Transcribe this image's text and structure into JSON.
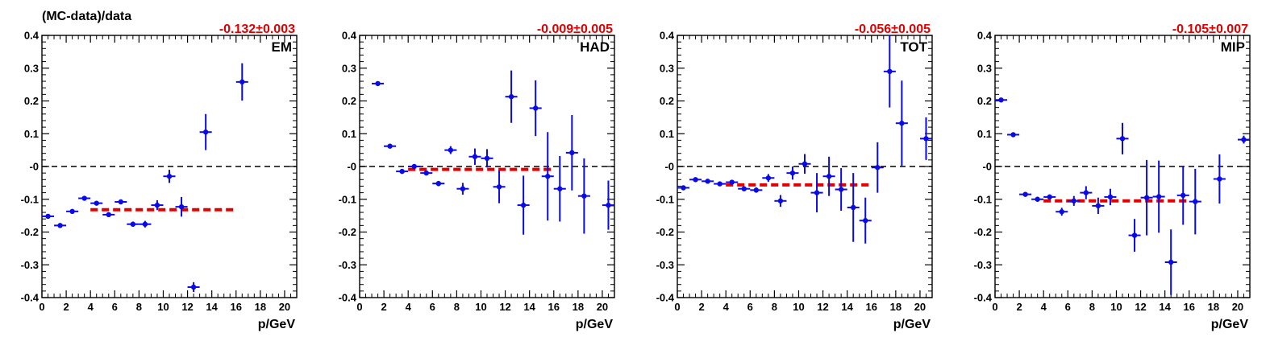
{
  "figure": {
    "ylabel": "(MC-data)/data"
  },
  "colors": {
    "points": "#0a0ae6",
    "fit": "#e00000",
    "zero_line": "#000000",
    "frame": "#000000"
  },
  "chart_data": [
    {
      "type": "scatter",
      "label": "EM",
      "fit_text": "-0.132±0.003",
      "fit_value": -0.132,
      "fit_range": [
        4,
        16
      ],
      "xlabel": "p/GeV",
      "ylabel": "(MC-data)/data",
      "xlim": [
        0,
        21
      ],
      "ylim": [
        -0.4,
        0.4
      ],
      "x_ticks": [
        "0",
        "2",
        "4",
        "6",
        "8",
        "10",
        "12",
        "14",
        "16",
        "18",
        "20"
      ],
      "y_ticks": [
        "-0.4",
        "-0.3",
        "-0.2",
        "-0.1",
        "-0",
        "0.1",
        "0.2",
        "0.3",
        "0.4"
      ],
      "points": [
        {
          "x": 0.5,
          "y": -0.152,
          "err": 0.005
        },
        {
          "x": 1.5,
          "y": -0.18,
          "err": 0.005
        },
        {
          "x": 2.5,
          "y": -0.137,
          "err": 0.005
        },
        {
          "x": 3.5,
          "y": -0.097,
          "err": 0.005
        },
        {
          "x": 4.5,
          "y": -0.112,
          "err": 0.005
        },
        {
          "x": 5.5,
          "y": -0.147,
          "err": 0.006
        },
        {
          "x": 6.5,
          "y": -0.108,
          "err": 0.006
        },
        {
          "x": 7.5,
          "y": -0.176,
          "err": 0.008
        },
        {
          "x": 8.5,
          "y": -0.176,
          "err": 0.01
        },
        {
          "x": 9.5,
          "y": -0.118,
          "err": 0.015
        },
        {
          "x": 10.5,
          "y": -0.03,
          "err": 0.02
        },
        {
          "x": 11.5,
          "y": -0.123,
          "err": 0.03
        },
        {
          "x": 12.5,
          "y": -0.368,
          "err": 0.015
        },
        {
          "x": 13.5,
          "y": 0.105,
          "err": 0.055
        },
        {
          "x": 16.5,
          "y": 0.258,
          "err": 0.057
        }
      ]
    },
    {
      "type": "scatter",
      "label": "HAD",
      "fit_text": "-0.009±0.005",
      "fit_value": -0.009,
      "fit_range": [
        4,
        16
      ],
      "xlabel": "p/GeV",
      "ylabel": "",
      "xlim": [
        0,
        21
      ],
      "ylim": [
        -0.4,
        0.4
      ],
      "x_ticks": [
        "0",
        "2",
        "4",
        "6",
        "8",
        "10",
        "12",
        "14",
        "16",
        "18",
        "20"
      ],
      "y_ticks": [
        "-0.4",
        "-0.3",
        "-0.2",
        "-0.1",
        "-0",
        "0.1",
        "0.2",
        "0.3",
        "0.4"
      ],
      "points": [
        {
          "x": 1.5,
          "y": 0.253,
          "err": 0.005
        },
        {
          "x": 2.5,
          "y": 0.062,
          "err": 0.005
        },
        {
          "x": 3.5,
          "y": -0.015,
          "err": 0.005
        },
        {
          "x": 4.5,
          "y": 0.0,
          "err": 0.005
        },
        {
          "x": 5.5,
          "y": -0.02,
          "err": 0.006
        },
        {
          "x": 6.5,
          "y": -0.052,
          "err": 0.008
        },
        {
          "x": 7.5,
          "y": 0.05,
          "err": 0.012
        },
        {
          "x": 8.5,
          "y": -0.068,
          "err": 0.018
        },
        {
          "x": 9.5,
          "y": 0.03,
          "err": 0.025
        },
        {
          "x": 10.5,
          "y": 0.025,
          "err": 0.028
        },
        {
          "x": 11.5,
          "y": -0.062,
          "err": 0.05
        },
        {
          "x": 12.5,
          "y": 0.213,
          "err": 0.08
        },
        {
          "x": 13.5,
          "y": -0.118,
          "err": 0.09
        },
        {
          "x": 14.5,
          "y": 0.178,
          "err": 0.085
        },
        {
          "x": 15.5,
          "y": -0.03,
          "err": 0.135
        },
        {
          "x": 16.5,
          "y": -0.068,
          "err": 0.1
        },
        {
          "x": 17.5,
          "y": 0.042,
          "err": 0.115
        },
        {
          "x": 18.5,
          "y": -0.09,
          "err": 0.115
        },
        {
          "x": 20.5,
          "y": -0.118,
          "err": 0.075
        }
      ]
    },
    {
      "type": "scatter",
      "label": "TOT",
      "fit_text": "-0.056±0.005",
      "fit_value": -0.056,
      "fit_range": [
        4,
        16
      ],
      "xlabel": "p/GeV",
      "ylabel": "",
      "xlim": [
        0,
        21
      ],
      "ylim": [
        -0.4,
        0.4
      ],
      "x_ticks": [
        "0",
        "2",
        "4",
        "6",
        "8",
        "10",
        "12",
        "14",
        "16",
        "18",
        "20"
      ],
      "y_ticks": [
        "-0.4",
        "-0.3",
        "-0.2",
        "-0.1",
        "-0",
        "0.1",
        "0.2",
        "0.3",
        "0.4"
      ],
      "points": [
        {
          "x": 0.5,
          "y": -0.065,
          "err": 0.005
        },
        {
          "x": 1.5,
          "y": -0.04,
          "err": 0.005
        },
        {
          "x": 2.5,
          "y": -0.045,
          "err": 0.005
        },
        {
          "x": 3.5,
          "y": -0.053,
          "err": 0.005
        },
        {
          "x": 4.5,
          "y": -0.048,
          "err": 0.005
        },
        {
          "x": 5.5,
          "y": -0.068,
          "err": 0.006
        },
        {
          "x": 6.5,
          "y": -0.072,
          "err": 0.008
        },
        {
          "x": 7.5,
          "y": -0.035,
          "err": 0.012
        },
        {
          "x": 8.5,
          "y": -0.105,
          "err": 0.018
        },
        {
          "x": 9.5,
          "y": -0.02,
          "err": 0.02
        },
        {
          "x": 10.5,
          "y": 0.008,
          "err": 0.03
        },
        {
          "x": 11.5,
          "y": -0.08,
          "err": 0.06
        },
        {
          "x": 12.5,
          "y": -0.03,
          "err": 0.06
        },
        {
          "x": 13.5,
          "y": -0.07,
          "err": 0.065
        },
        {
          "x": 14.5,
          "y": -0.125,
          "err": 0.105
        },
        {
          "x": 15.5,
          "y": -0.165,
          "err": 0.07
        },
        {
          "x": 16.5,
          "y": -0.003,
          "err": 0.077
        },
        {
          "x": 17.5,
          "y": 0.29,
          "err": 0.11
        },
        {
          "x": 18.5,
          "y": 0.132,
          "err": 0.13
        },
        {
          "x": 20.5,
          "y": 0.085,
          "err": 0.065
        }
      ]
    },
    {
      "type": "scatter",
      "label": "MIP",
      "fit_text": "-0.105±0.007",
      "fit_value": -0.105,
      "fit_range": [
        4,
        16
      ],
      "xlabel": "p/GeV",
      "ylabel": "",
      "xlim": [
        0,
        21
      ],
      "ylim": [
        -0.4,
        0.4
      ],
      "x_ticks": [
        "0",
        "2",
        "4",
        "6",
        "8",
        "10",
        "12",
        "14",
        "16",
        "18",
        "20"
      ],
      "y_ticks": [
        "-0.4",
        "-0.3",
        "-0.2",
        "-0.1",
        "-0",
        "0.1",
        "0.2",
        "0.3",
        "0.4"
      ],
      "points": [
        {
          "x": 0.5,
          "y": 0.203,
          "err": 0.005
        },
        {
          "x": 1.5,
          "y": 0.097,
          "err": 0.005
        },
        {
          "x": 2.5,
          "y": -0.085,
          "err": 0.005
        },
        {
          "x": 3.5,
          "y": -0.1,
          "err": 0.006
        },
        {
          "x": 4.5,
          "y": -0.093,
          "err": 0.008
        },
        {
          "x": 5.5,
          "y": -0.138,
          "err": 0.012
        },
        {
          "x": 6.5,
          "y": -0.105,
          "err": 0.015
        },
        {
          "x": 7.5,
          "y": -0.08,
          "err": 0.02
        },
        {
          "x": 8.5,
          "y": -0.12,
          "err": 0.025
        },
        {
          "x": 9.5,
          "y": -0.093,
          "err": 0.025
        },
        {
          "x": 10.5,
          "y": 0.085,
          "err": 0.048
        },
        {
          "x": 11.5,
          "y": -0.21,
          "err": 0.05
        },
        {
          "x": 12.5,
          "y": -0.095,
          "err": 0.115
        },
        {
          "x": 13.5,
          "y": -0.092,
          "err": 0.11
        },
        {
          "x": 14.5,
          "y": -0.292,
          "err": 0.1
        },
        {
          "x": 15.5,
          "y": -0.088,
          "err": 0.09
        },
        {
          "x": 16.5,
          "y": -0.107,
          "err": 0.1
        },
        {
          "x": 18.5,
          "y": -0.038,
          "err": 0.075
        },
        {
          "x": 20.5,
          "y": 0.082,
          "err": 0.012
        }
      ]
    }
  ]
}
